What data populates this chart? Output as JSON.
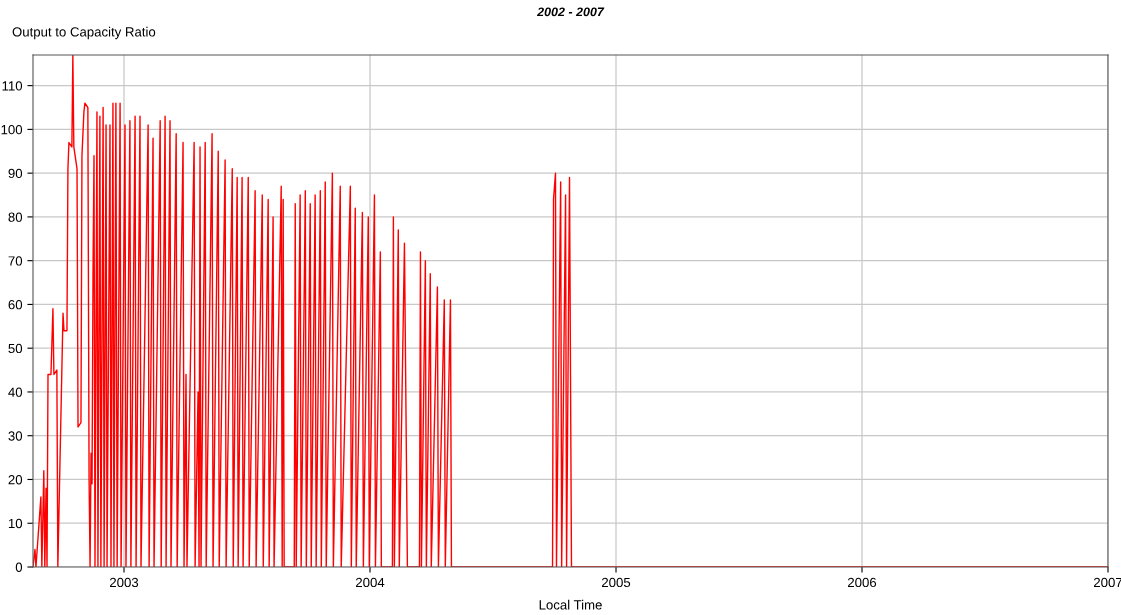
{
  "chart_data": {
    "type": "line",
    "title": "2002 - 2007",
    "xlabel": "Local Time",
    "ylabel": "Output to Capacity Ratio",
    "xlim": [
      2002.63,
      2007.0
    ],
    "xticks": [
      2003,
      2004,
      2005,
      2006,
      2007
    ],
    "ylim": [
      0,
      117
    ],
    "yticks": [
      0,
      10,
      20,
      30,
      40,
      50,
      60,
      70,
      80,
      90,
      100,
      110
    ],
    "grid": true,
    "marker": "none",
    "line_style": "solid",
    "series": [
      {
        "color": "#ff0000",
        "x": [
          2002.63,
          2002.638,
          2002.642,
          2002.662,
          2002.666,
          2002.674,
          2002.678,
          2002.683,
          2002.687,
          2002.691,
          2002.703,
          2002.711,
          2002.715,
          2002.727,
          2002.731,
          2002.752,
          2002.756,
          2002.768,
          2002.772,
          2002.776,
          2002.788,
          2002.792,
          2002.796,
          2002.809,
          2002.813,
          2002.825,
          2002.829,
          2002.837,
          2002.841,
          2002.853,
          2002.858,
          2002.862,
          2002.866,
          2002.87,
          2002.874,
          2002.878,
          2002.882,
          2002.89,
          2002.894,
          2002.902,
          2002.906,
          2002.915,
          2002.919,
          2002.927,
          2002.931,
          2002.943,
          2002.947,
          2002.955,
          2002.959,
          2002.967,
          2002.972,
          2002.984,
          2002.988,
          2003.004,
          2003.008,
          2003.024,
          2003.028,
          2003.045,
          2003.049,
          2003.065,
          2003.069,
          2003.098,
          2003.102,
          2003.118,
          2003.122,
          2003.147,
          2003.151,
          2003.167,
          2003.171,
          2003.187,
          2003.191,
          2003.212,
          2003.216,
          2003.24,
          2003.244,
          2003.252,
          2003.256,
          2003.285,
          2003.289,
          2003.301,
          2003.305,
          2003.309,
          2003.313,
          2003.33,
          2003.334,
          2003.358,
          2003.362,
          2003.383,
          2003.387,
          2003.411,
          2003.415,
          2003.44,
          2003.444,
          2003.46,
          2003.464,
          2003.48,
          2003.484,
          2003.505,
          2003.509,
          2003.533,
          2003.537,
          2003.562,
          2003.566,
          2003.586,
          2003.59,
          2003.606,
          2003.61,
          2003.639,
          2003.643,
          2003.647,
          2003.651,
          2003.692,
          2003.696,
          2003.7,
          2003.716,
          2003.72,
          2003.737,
          2003.741,
          2003.757,
          2003.761,
          2003.777,
          2003.781,
          2003.798,
          2003.802,
          2003.818,
          2003.822,
          2003.847,
          2003.851,
          2003.879,
          2003.883,
          2003.92,
          2003.924,
          2003.94,
          2003.944,
          2003.969,
          2003.973,
          2003.993,
          2003.997,
          2004.018,
          2004.022,
          2004.042,
          2004.046,
          2004.091,
          2004.095,
          2004.099,
          2004.115,
          2004.119,
          2004.14,
          2004.152,
          2004.201,
          2004.205,
          2004.209,
          2004.225,
          2004.229,
          2004.245,
          2004.249,
          2004.274,
          2004.278,
          2004.302,
          2004.306,
          2004.327,
          2004.331,
          2004.742,
          2004.746,
          2004.754,
          2004.758,
          2004.775,
          2004.779,
          2004.795,
          2004.799,
          2004.811,
          2004.819,
          2007.0
        ],
        "values": [
          0,
          4,
          0,
          16,
          0,
          22,
          0,
          18,
          0,
          44,
          44,
          59,
          44,
          45,
          0,
          58,
          54,
          54,
          91,
          97,
          96,
          117,
          96,
          91,
          32,
          33,
          94,
          104,
          106,
          105,
          20,
          0,
          26,
          19,
          68,
          94,
          0,
          104,
          0,
          103,
          0,
          105,
          0,
          101,
          0,
          101,
          0,
          106,
          0,
          106,
          0,
          106,
          0,
          101,
          0,
          102,
          0,
          103,
          0,
          103,
          0,
          101,
          0,
          98,
          0,
          102,
          0,
          103,
          0,
          102,
          0,
          99,
          0,
          97,
          0,
          44,
          0,
          97,
          0,
          40,
          0,
          96,
          0,
          97,
          0,
          99,
          0,
          95,
          0,
          93,
          0,
          91,
          0,
          89,
          0,
          89,
          0,
          89,
          0,
          86,
          0,
          85,
          0,
          84,
          0,
          80,
          0,
          87,
          0,
          84,
          0,
          0,
          83,
          0,
          85,
          0,
          86,
          0,
          83,
          0,
          85,
          0,
          86,
          0,
          88,
          0,
          90,
          0,
          87,
          0,
          87,
          0,
          82,
          0,
          81,
          0,
          80,
          0,
          85,
          0,
          72,
          0,
          0,
          80,
          0,
          77,
          0,
          74,
          0,
          0,
          72,
          0,
          70,
          0,
          67,
          0,
          64,
          0,
          61,
          0,
          61,
          0,
          0,
          84,
          90,
          0,
          88,
          0,
          85,
          0,
          89,
          0,
          0
        ]
      }
    ]
  }
}
